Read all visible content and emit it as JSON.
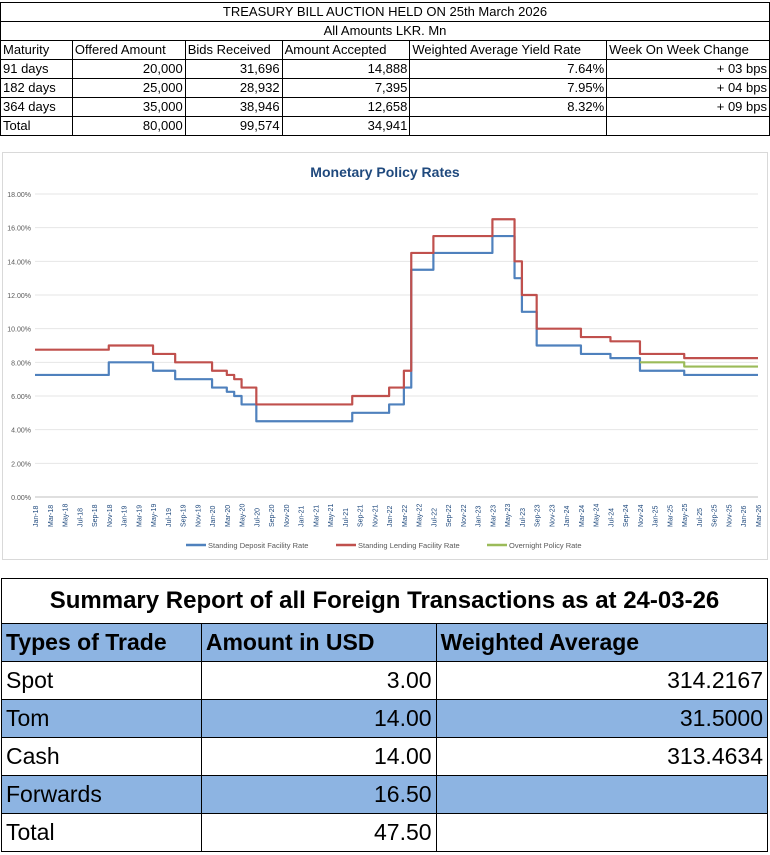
{
  "tbill": {
    "title": "TREASURY BILL AUCTION HELD ON 25th March 2026",
    "subtitle": "All Amounts LKR. Mn",
    "headers": [
      "Maturity",
      "Offered Amount",
      "Bids Received",
      "Amount Accepted",
      "Weighted Average Yield Rate",
      "Week On Week Change"
    ],
    "rows": [
      [
        "91 days",
        "20,000",
        "31,696",
        "14,888",
        "7.64%",
        "+ 03 bps"
      ],
      [
        "182 days",
        "25,000",
        "28,932",
        "7,395",
        "7.95%",
        "+ 04 bps"
      ],
      [
        "364 days",
        "35,000",
        "38,946",
        "12,658",
        "8.32%",
        "+ 09 bps"
      ],
      [
        "Total",
        "80,000",
        "99,574",
        "34,941",
        "",
        ""
      ]
    ]
  },
  "chart_data": {
    "type": "line",
    "title": "Monetary Policy Rates",
    "ylim": [
      0,
      18
    ],
    "yticks": [
      "0.00%",
      "2.00%",
      "4.00%",
      "6.00%",
      "8.00%",
      "10.00%",
      "12.00%",
      "14.00%",
      "16.00%",
      "18.00%"
    ],
    "xticks": [
      "Jan-18",
      "Mar-18",
      "May-18",
      "Jul-18",
      "Sep-18",
      "Nov-18",
      "Jan-19",
      "Mar-19",
      "May-19",
      "Jul-19",
      "Sep-19",
      "Nov-19",
      "Jan-20",
      "Mar-20",
      "May-20",
      "Jul-20",
      "Sep-20",
      "Nov-20",
      "Jan-21",
      "Mar-21",
      "May-21",
      "Jul-21",
      "Sep-21",
      "Nov-21",
      "Jan-22",
      "Mar-22",
      "May-22",
      "Jul-22",
      "Sep-22",
      "Nov-22",
      "Jan-23",
      "Mar-23",
      "May-23",
      "Jul-23",
      "Sep-23",
      "Nov-23",
      "Jan-24",
      "Mar-24",
      "May-24",
      "Jul-24",
      "Sep-24",
      "Nov-24",
      "Jan-25",
      "Mar-25",
      "May-25",
      "Jul-25",
      "Sep-25",
      "Nov-25",
      "Jan-26",
      "Mar-26"
    ],
    "x_note": "month index from Jan-18 = 0; step changes [month, rate %]",
    "x_end": 98,
    "legend_position": "bottom",
    "series": [
      {
        "name": "Standing Deposit Facility Rate",
        "color": "#4f81bd",
        "steps": [
          [
            0,
            7.25
          ],
          [
            10,
            8.0
          ],
          [
            16,
            7.5
          ],
          [
            19,
            7.0
          ],
          [
            24,
            6.5
          ],
          [
            26,
            6.25
          ],
          [
            27,
            6.0
          ],
          [
            28,
            5.5
          ],
          [
            30,
            4.5
          ],
          [
            43,
            5.0
          ],
          [
            48,
            5.5
          ],
          [
            50,
            6.5
          ],
          [
            51,
            13.5
          ],
          [
            54,
            14.5
          ],
          [
            62,
            15.5
          ],
          [
            65,
            13.0
          ],
          [
            66,
            11.0
          ],
          [
            68,
            9.0
          ],
          [
            74,
            8.5
          ],
          [
            78,
            8.25
          ],
          [
            82,
            7.5
          ],
          [
            88,
            7.25
          ]
        ]
      },
      {
        "name": "Standing Lending Facility Rate",
        "color": "#c0504d",
        "steps": [
          [
            0,
            8.75
          ],
          [
            10,
            9.0
          ],
          [
            16,
            8.5
          ],
          [
            19,
            8.0
          ],
          [
            24,
            7.5
          ],
          [
            26,
            7.25
          ],
          [
            27,
            7.0
          ],
          [
            28,
            6.5
          ],
          [
            30,
            5.5
          ],
          [
            43,
            6.0
          ],
          [
            48,
            6.5
          ],
          [
            50,
            7.5
          ],
          [
            51,
            14.5
          ],
          [
            54,
            15.5
          ],
          [
            62,
            16.5
          ],
          [
            65,
            14.0
          ],
          [
            66,
            12.0
          ],
          [
            68,
            10.0
          ],
          [
            74,
            9.5
          ],
          [
            78,
            9.25
          ],
          [
            82,
            8.5
          ],
          [
            88,
            8.25
          ]
        ]
      },
      {
        "name": "Overnight Policy Rate",
        "color": "#9bbb59",
        "steps": [
          [
            82,
            8.0
          ],
          [
            88,
            7.75
          ]
        ]
      }
    ]
  },
  "fx": {
    "title": "Summary Report of all Foreign Transactions as at 24-03-26",
    "headers": [
      "Types of Trade",
      "Amount in USD",
      "Weighted Average"
    ],
    "rows": [
      [
        "Spot",
        "3.00",
        "314.2167"
      ],
      [
        "Tom",
        "14.00",
        "31.5000"
      ],
      [
        "Cash",
        "14.00",
        "313.4634"
      ],
      [
        "Forwards",
        "16.50",
        ""
      ],
      [
        "Total",
        "47.50",
        ""
      ]
    ]
  }
}
